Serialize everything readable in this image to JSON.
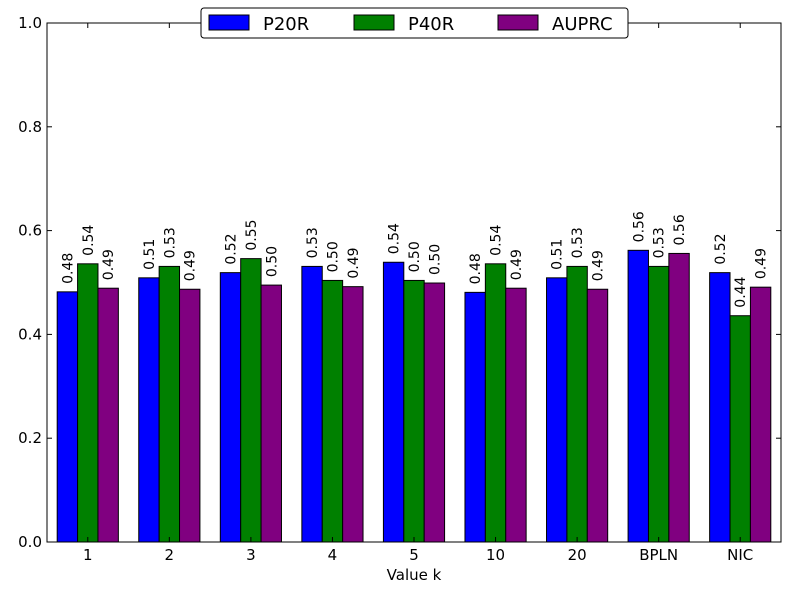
{
  "chart_data": {
    "type": "bar",
    "title": "",
    "xlabel": "Value k",
    "ylabel": "",
    "ylim": [
      0,
      1.0
    ],
    "yticks": [
      "0.0",
      "0.2",
      "0.4",
      "0.6",
      "0.8",
      "1.0"
    ],
    "categories": [
      "1",
      "2",
      "3",
      "4",
      "5",
      "10",
      "20",
      "BPLN",
      "NIC"
    ],
    "series": [
      {
        "name": "P20R",
        "color": "#0000ff",
        "values": [
          0.482,
          0.509,
          0.519,
          0.531,
          0.539,
          0.481,
          0.509,
          0.562,
          0.519
        ],
        "labels": [
          "0.48",
          "0.51",
          "0.52",
          "0.53",
          "0.54",
          "0.48",
          "0.51",
          "0.56",
          "0.52"
        ]
      },
      {
        "name": "P40R",
        "color": "#008000",
        "values": [
          0.536,
          0.531,
          0.546,
          0.504,
          0.504,
          0.536,
          0.531,
          0.531,
          0.436
        ],
        "labels": [
          "0.54",
          "0.53",
          "0.55",
          "0.50",
          "0.50",
          "0.54",
          "0.53",
          "0.53",
          "0.44"
        ]
      },
      {
        "name": "AUPRC",
        "color": "#800080",
        "values": [
          0.489,
          0.487,
          0.495,
          0.492,
          0.499,
          0.489,
          0.487,
          0.556,
          0.491
        ],
        "labels": [
          "0.49",
          "0.49",
          "0.50",
          "0.49",
          "0.50",
          "0.49",
          "0.49",
          "0.56",
          "0.49"
        ]
      }
    ],
    "legend_position": "top-center",
    "grid": false
  }
}
